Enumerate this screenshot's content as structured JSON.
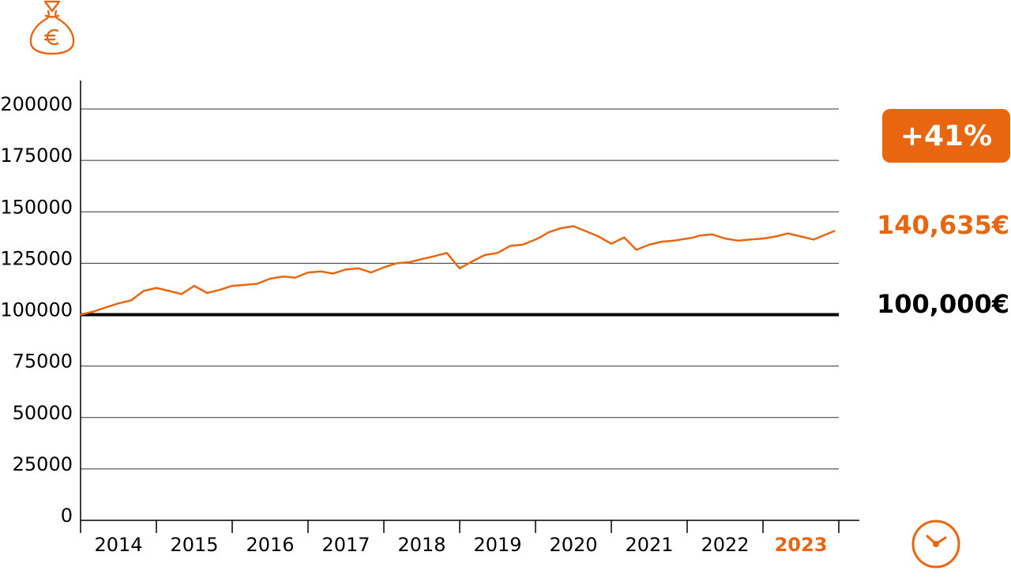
{
  "chart_data": {
    "type": "line",
    "y_ticks": [
      "200000",
      "175000",
      "150000",
      "125000",
      "100000",
      "75000",
      "50000",
      "25000",
      "0"
    ],
    "ylim": [
      0,
      200000
    ],
    "x_ticks": [
      "2014",
      "2015",
      "2016",
      "2017",
      "2018",
      "2019",
      "2020",
      "2021",
      "2022",
      "2023"
    ],
    "xlim": [
      2014,
      2024
    ],
    "grid": true,
    "reference_line": 100000,
    "series": [
      {
        "x": [
          2014.0,
          2014.17,
          2014.33,
          2014.5,
          2014.67,
          2014.83,
          2015.0,
          2015.17,
          2015.33,
          2015.5,
          2015.67,
          2015.83,
          2016.0,
          2016.17,
          2016.33,
          2016.5,
          2016.67,
          2016.83,
          2017.0,
          2017.17,
          2017.33,
          2017.5,
          2017.67,
          2017.83,
          2018.0,
          2018.17,
          2018.33,
          2018.5,
          2018.67,
          2018.83,
          2019.0,
          2019.17,
          2019.33,
          2019.5,
          2019.67,
          2019.83,
          2020.0,
          2020.08,
          2020.17,
          2020.33,
          2020.5,
          2020.67,
          2020.83,
          2021.0,
          2021.17,
          2021.33,
          2021.5,
          2021.67,
          2021.83,
          2022.0,
          2022.08,
          2022.17,
          2022.33,
          2022.5,
          2022.67,
          2022.83,
          2023.0,
          2023.17,
          2023.33,
          2023.5,
          2023.67,
          2023.83,
          2023.94
        ],
        "values": [
          100000,
          101500,
          103500,
          105500,
          107000,
          111500,
          113000,
          111500,
          110000,
          114000,
          110500,
          112000,
          114000,
          114500,
          115000,
          117500,
          118500,
          118000,
          120500,
          121000,
          120000,
          122000,
          122500,
          120500,
          123000,
          125000,
          125500,
          127000,
          128500,
          130000,
          122500,
          126000,
          129000,
          130000,
          133500,
          134000,
          136500,
          138000,
          140000,
          142000,
          143000,
          140500,
          138000,
          134500,
          137500,
          131500,
          134000,
          135500,
          136000,
          137000,
          137500,
          138500,
          139000,
          137000,
          136000,
          136500,
          137000,
          138000,
          139500,
          138000,
          136500,
          139000,
          140635
        ]
      }
    ]
  },
  "badge": {
    "text": "+41%",
    "color": "#e8660f"
  },
  "final_value": {
    "text": "140,635€",
    "color": "#e8660f"
  },
  "baseline_value": {
    "text": "100,000€"
  },
  "colors": {
    "accent": "#e8660f",
    "baseline": "#000000",
    "grid": "#333333"
  },
  "icons": {
    "top": "money-bag-euro-icon",
    "bottom": "clock-icon"
  }
}
